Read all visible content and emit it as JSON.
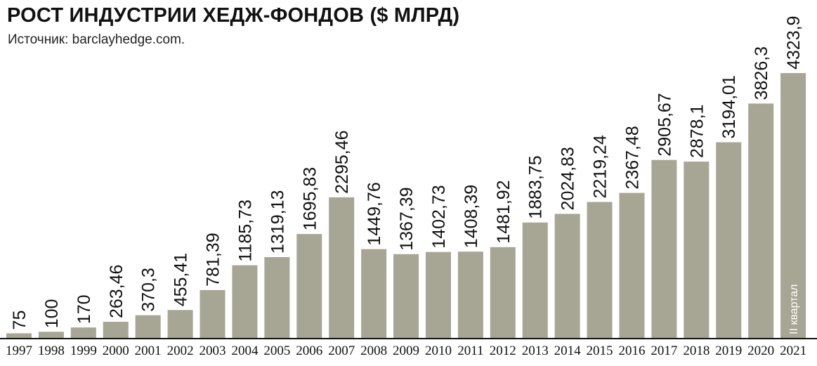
{
  "header": {
    "title": "РОСТ ИНДУСТРИИ ХЕДЖ-ФОНДОВ ($ МЛРД)",
    "subtitle": "Источник: barclayhedge.com."
  },
  "colors": {
    "bar": "#a7a594",
    "bar_last": "#a7a594",
    "text": "#111111",
    "axis": "#111111"
  },
  "chart_data": {
    "type": "bar",
    "title": "РОСТ ИНДУСТРИИ ХЕДЖ-ФОНДОВ ($ МЛРД)",
    "xlabel": "",
    "ylabel": "",
    "ylim": [
      0,
      4323.9
    ],
    "grid": false,
    "categories": [
      "1997",
      "1998",
      "1999",
      "2000",
      "2001",
      "2002",
      "2003",
      "2004",
      "2005",
      "2006",
      "2007",
      "2008",
      "2009",
      "2010",
      "2011",
      "2012",
      "2013",
      "2014",
      "2015",
      "2016",
      "2017",
      "2018",
      "2019",
      "2020",
      "2021"
    ],
    "values": [
      75,
      100,
      170,
      263.46,
      370.3,
      455.41,
      781.39,
      1185.73,
      1319.13,
      1695.83,
      2295.46,
      1449.76,
      1367.39,
      1402.73,
      1408.39,
      1481.92,
      1883.75,
      2024.83,
      2219.24,
      2367.48,
      2905.67,
      2878.1,
      3194.01,
      3826.3,
      4323.9
    ],
    "value_labels": [
      "75",
      "100",
      "170",
      "263,46",
      "370,3",
      "455,41",
      "781,39",
      "1185,73",
      "1319,13",
      "1695,83",
      "2295,46",
      "1449,76",
      "1367,39",
      "1402,73",
      "1408,39",
      "1481,92",
      "1883,75",
      "2024,83",
      "2219,24",
      "2367,48",
      "2905,67",
      "2878,1",
      "3194,01",
      "3826,3",
      "4323,9"
    ],
    "annotations": [
      {
        "category": "2021",
        "text": "II квартал"
      }
    ]
  }
}
